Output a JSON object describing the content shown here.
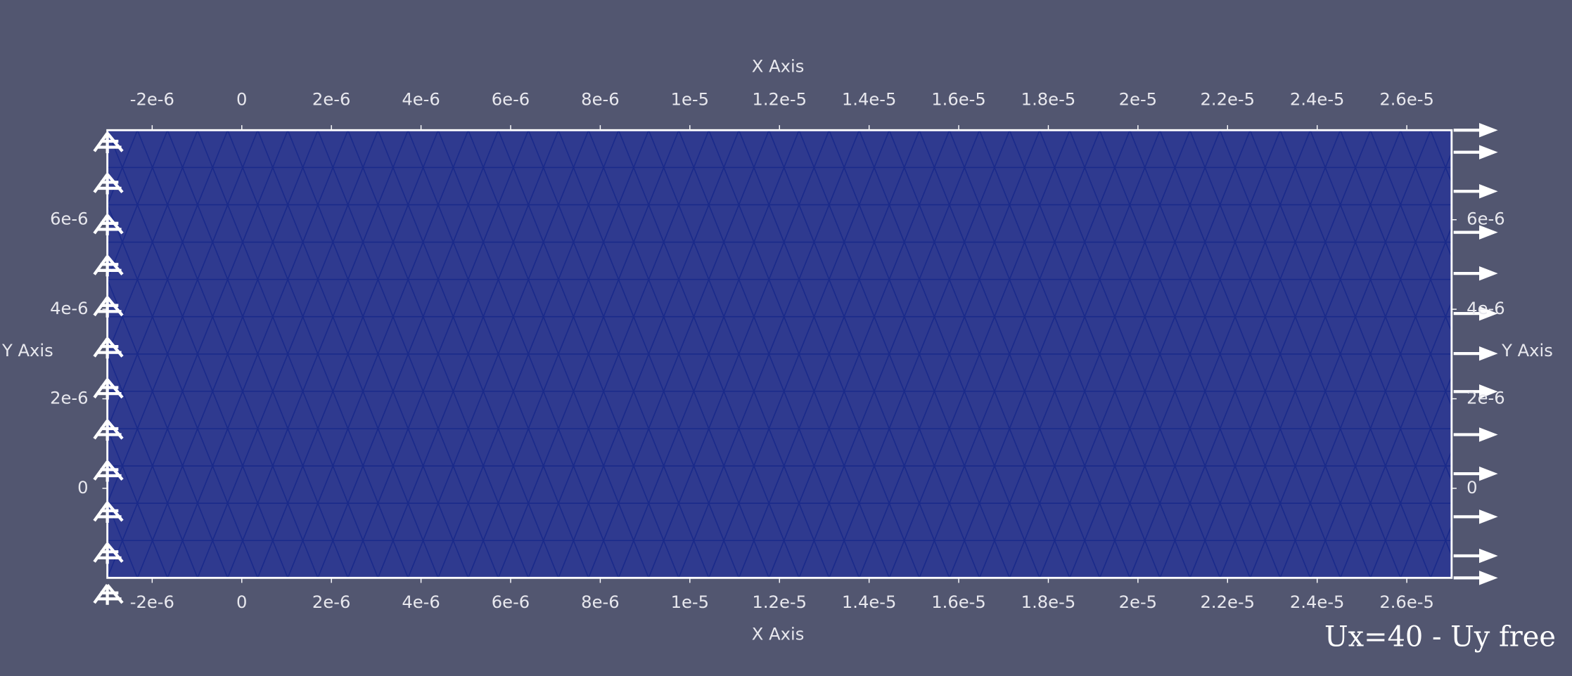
{
  "chart_data": {
    "type": "mesh",
    "x_label": "X Axis",
    "y_label": "Y Axis",
    "annotation": "Ux=40 - Uy free",
    "xlim": [
      -3e-06,
      2.7e-05
    ],
    "ylim": [
      -2e-06,
      8e-06
    ],
    "xticks": [
      {
        "value": -2e-06,
        "label": "-2e-6"
      },
      0,
      {
        "value": 2e-06,
        "label": "2e-6"
      },
      {
        "value": 4e-06,
        "label": "4e-6"
      },
      {
        "value": 6e-06,
        "label": "6e-6"
      },
      {
        "value": 8e-06,
        "label": "8e-6"
      },
      {
        "value": 1e-05,
        "label": "1e-5"
      },
      {
        "value": 1.2e-05,
        "label": "1.2e-5"
      },
      {
        "value": 1.4e-05,
        "label": "1.4e-5"
      },
      {
        "value": 1.6e-05,
        "label": "1.6e-5"
      },
      {
        "value": 1.8e-05,
        "label": "1.8e-5"
      },
      {
        "value": 2e-05,
        "label": "2e-5"
      },
      {
        "value": 2.2e-05,
        "label": "2.2e-5"
      },
      {
        "value": 2.4e-05,
        "label": "2.4e-5"
      },
      {
        "value": 2.6e-05,
        "label": "2.6e-5"
      }
    ],
    "yticks": [
      0,
      {
        "value": 2e-06,
        "label": "2e-6"
      },
      {
        "value": 4e-06,
        "label": "4e-6"
      },
      {
        "value": 6e-06,
        "label": "6e-6"
      }
    ],
    "color": "#2f3a8f"
  }
}
